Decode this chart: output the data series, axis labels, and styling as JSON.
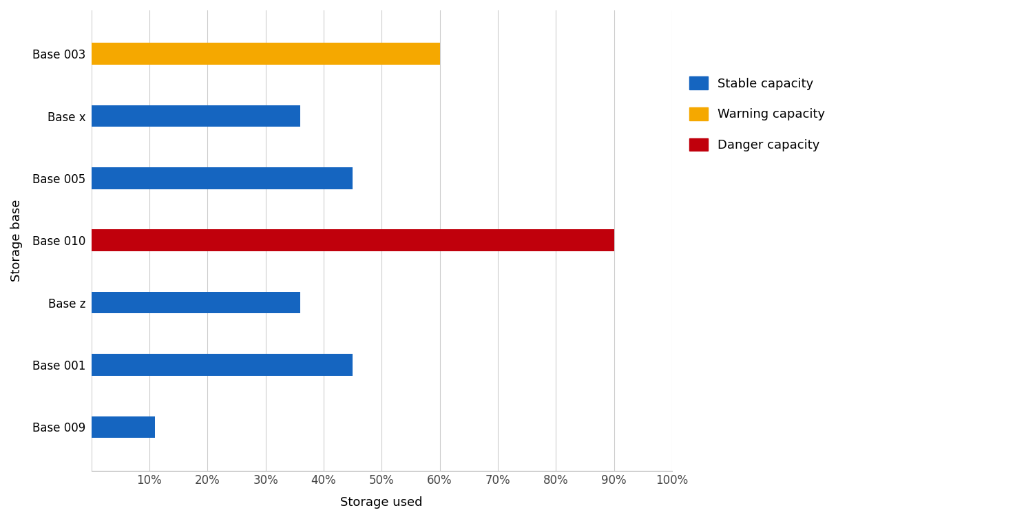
{
  "categories": [
    "Base 003",
    "Base x",
    "Base 005",
    "Base 010",
    "Base z",
    "Base 001",
    "Base 009"
  ],
  "values": [
    60,
    36,
    45,
    90,
    36,
    45,
    11
  ],
  "colors": [
    "#F5A800",
    "#1565C0",
    "#1565C0",
    "#C0000C",
    "#1565C0",
    "#1565C0",
    "#1565C0"
  ],
  "xlabel": "Storage used",
  "ylabel": "Storage base",
  "xlim": [
    0,
    100
  ],
  "xticks": [
    0,
    10,
    20,
    30,
    40,
    50,
    60,
    70,
    80,
    90,
    100
  ],
  "xtick_labels": [
    "",
    "10%",
    "20%",
    "30%",
    "40%",
    "50%",
    "60%",
    "70%",
    "80%",
    "90%",
    "100%"
  ],
  "legend": [
    {
      "label": "Stable capacity",
      "color": "#1565C0"
    },
    {
      "label": "Warning capacity",
      "color": "#F5A800"
    },
    {
      "label": "Danger capacity",
      "color": "#C0000C"
    }
  ],
  "bar_height": 0.35,
  "background_color": "#FFFFFF",
  "label_fontsize": 13,
  "tick_fontsize": 12,
  "legend_fontsize": 13,
  "grid_color": "#CCCCCC",
  "axis_color": "#AAAAAA"
}
